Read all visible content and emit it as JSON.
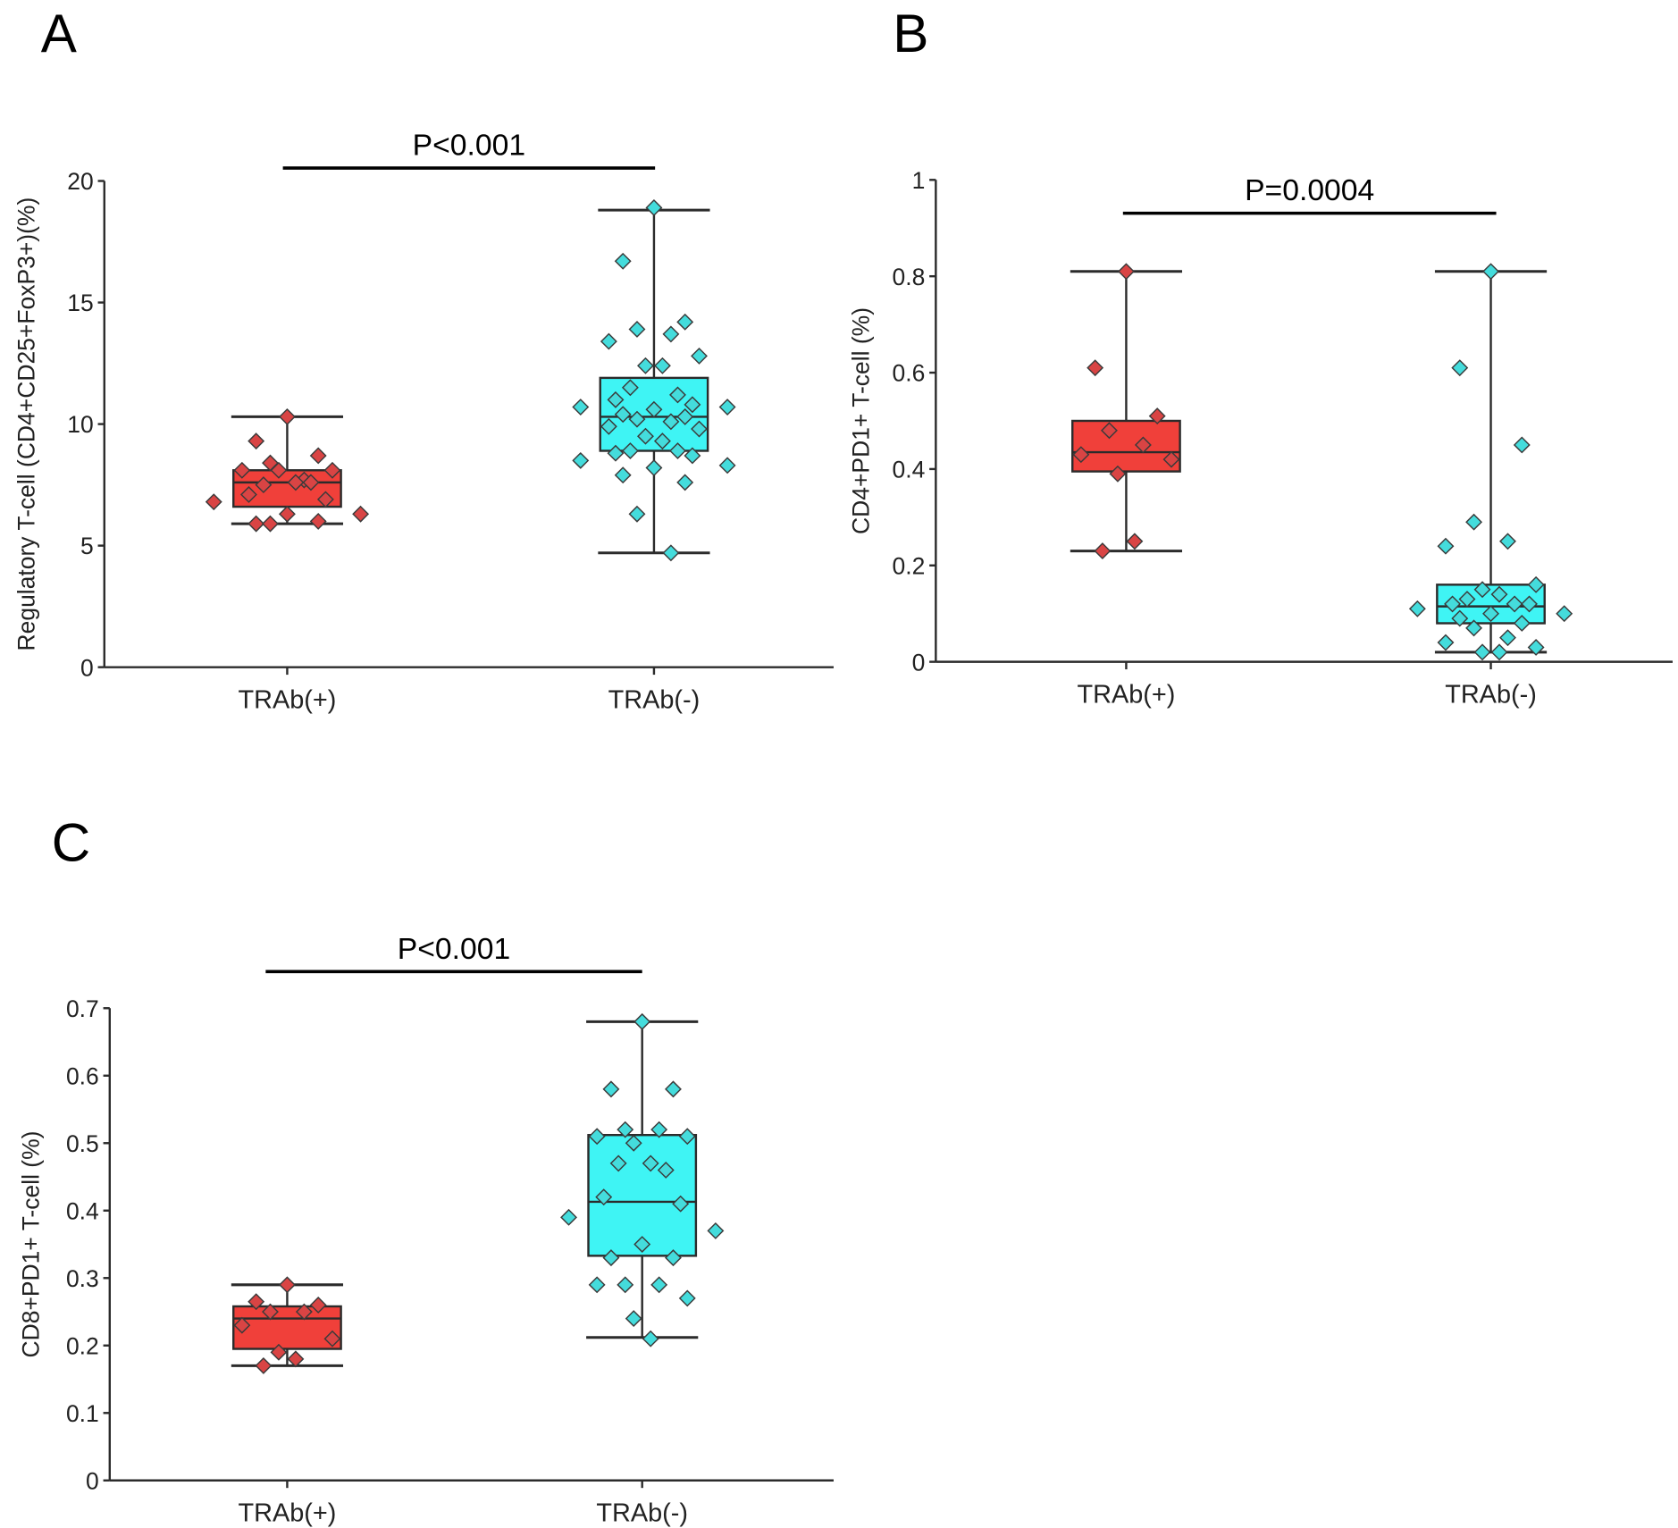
{
  "colors": {
    "pos_fill": "#f0403a",
    "pos_point": "#d94444",
    "neg_fill": "#3ff4f4",
    "neg_point": "#44dcdc",
    "line": "#2b2b2b"
  },
  "chart_data": [
    {
      "panel": "A",
      "type": "box",
      "ylabel": "Regulatory T-cell (CD4+CD25+FoxP3+)(%)",
      "ylim": [
        0,
        20
      ],
      "yticks": [
        0,
        5,
        10,
        15,
        20
      ],
      "categories": [
        "TRAb(+)",
        "TRAb(-)"
      ],
      "significance": "P<0.001",
      "series": [
        {
          "name": "TRAb(+)",
          "q1": 6.6,
          "median": 7.6,
          "q3": 8.1,
          "whisker_low": 5.9,
          "whisker_high": 10.3,
          "points": [
            10.3,
            9.3,
            8.7,
            8.4,
            7.7,
            8.1,
            8.1,
            8.1,
            7.6,
            7.5,
            7.6,
            7.1,
            6.9,
            6.8,
            6.3,
            6.3,
            5.9,
            6.0,
            5.9
          ]
        },
        {
          "name": "TRAb(-)",
          "q1": 8.9,
          "median": 10.3,
          "q3": 11.9,
          "whisker_low": 4.7,
          "whisker_high": 18.8,
          "points": [
            18.9,
            16.7,
            14.2,
            13.9,
            13.7,
            13.4,
            12.8,
            12.4,
            12.4,
            11.5,
            11.2,
            11.0,
            10.8,
            10.7,
            10.7,
            10.6,
            10.4,
            10.3,
            10.2,
            10.1,
            9.9,
            9.8,
            9.5,
            9.3,
            8.9,
            8.9,
            8.8,
            8.7,
            8.5,
            8.3,
            8.2,
            7.9,
            7.6,
            6.3,
            4.7
          ]
        }
      ]
    },
    {
      "panel": "B",
      "type": "box",
      "ylabel": "CD4+PD1+ T-cell (%)",
      "ylim": [
        0,
        1
      ],
      "yticks": [
        0,
        0.2,
        0.4,
        0.6,
        0.8,
        1
      ],
      "categories": [
        "TRAb(+)",
        "TRAb(-)"
      ],
      "significance": "P=0.0004",
      "series": [
        {
          "name": "TRAb(+)",
          "q1": 0.395,
          "median": 0.435,
          "q3": 0.5,
          "whisker_low": 0.23,
          "whisker_high": 0.81,
          "points": [
            0.81,
            0.61,
            0.51,
            0.48,
            0.45,
            0.43,
            0.42,
            0.39,
            0.25,
            0.23
          ]
        },
        {
          "name": "TRAb(-)",
          "q1": 0.08,
          "median": 0.115,
          "q3": 0.16,
          "whisker_low": 0.02,
          "whisker_high": 0.81,
          "points": [
            0.81,
            0.61,
            0.45,
            0.29,
            0.25,
            0.24,
            0.16,
            0.15,
            0.14,
            0.13,
            0.12,
            0.12,
            0.12,
            0.11,
            0.1,
            0.1,
            0.09,
            0.08,
            0.07,
            0.05,
            0.04,
            0.03,
            0.02,
            0.02
          ]
        }
      ]
    },
    {
      "panel": "C",
      "type": "box",
      "ylabel": "CD8+PD1+ T-cell (%)",
      "ylim": [
        0,
        0.7
      ],
      "yticks": [
        0,
        0.1,
        0.2,
        0.3,
        0.4,
        0.5,
        0.6,
        0.7
      ],
      "categories": [
        "TRAb(+)",
        "TRAb(-)"
      ],
      "significance": "P<0.001",
      "series": [
        {
          "name": "TRAb(+)",
          "q1": 0.195,
          "median": 0.24,
          "q3": 0.258,
          "whisker_low": 0.17,
          "whisker_high": 0.29,
          "points": [
            0.29,
            0.265,
            0.26,
            0.25,
            0.25,
            0.23,
            0.21,
            0.19,
            0.18,
            0.17
          ]
        },
        {
          "name": "TRAb(-)",
          "q1": 0.333,
          "median": 0.413,
          "q3": 0.512,
          "whisker_low": 0.212,
          "whisker_high": 0.68,
          "points": [
            0.68,
            0.58,
            0.58,
            0.52,
            0.52,
            0.51,
            0.51,
            0.5,
            0.47,
            0.47,
            0.46,
            0.42,
            0.41,
            0.39,
            0.37,
            0.35,
            0.33,
            0.33,
            0.29,
            0.29,
            0.29,
            0.27,
            0.24,
            0.21
          ]
        }
      ]
    }
  ]
}
